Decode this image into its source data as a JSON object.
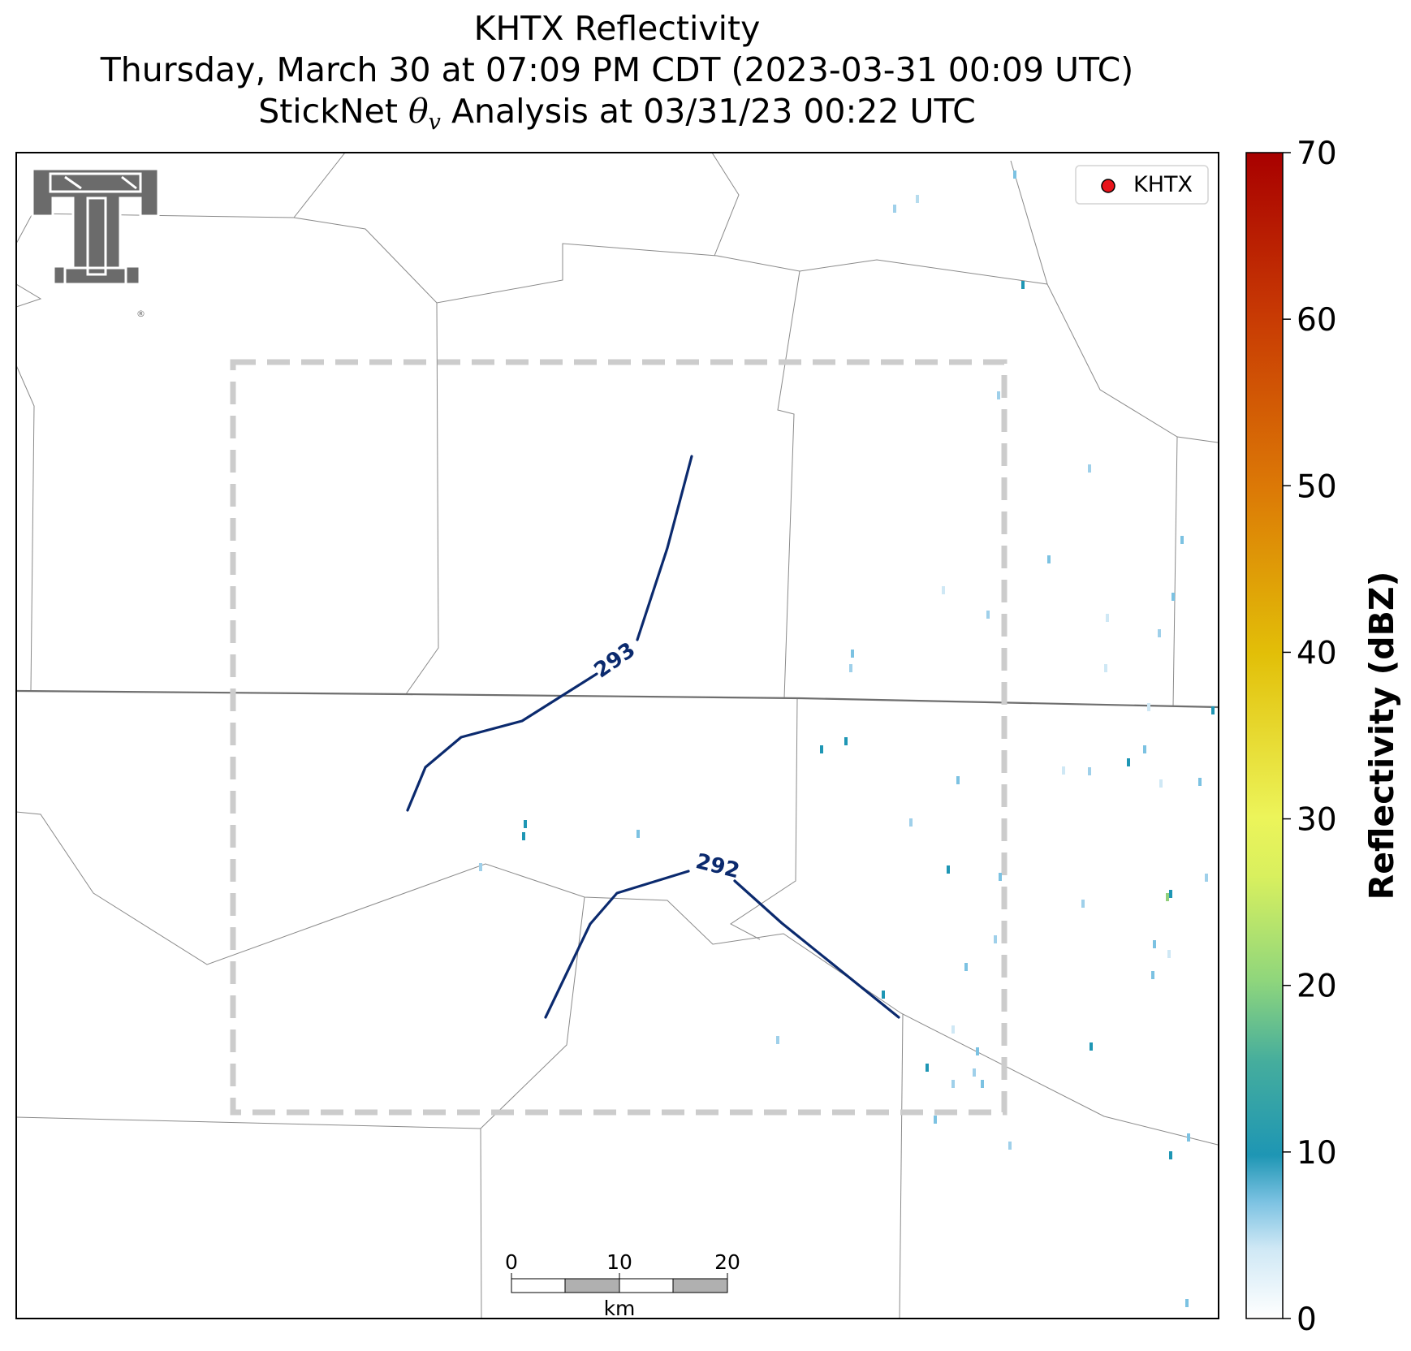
{
  "title": {
    "line1": "KHTX Reflectivity",
    "line2": "Thursday, March 30 at 07:09 PM CDT (2023-03-31 00:09 UTC)",
    "line3_prefix": "StickNet ",
    "line3_symbol": "θ",
    "line3_subscript": "v",
    "line3_suffix": " Analysis at 03/31/23 00:22 UTC"
  },
  "legend": {
    "label": "KHTX",
    "marker_color": "#e8141b"
  },
  "contours": [
    {
      "label": "293",
      "color": "#0b2a6e"
    },
    {
      "label": "292",
      "color": "#0b2a6e"
    }
  ],
  "scale_bar": {
    "ticks": [
      "0",
      "10",
      "20"
    ],
    "unit": "km"
  },
  "colorbar": {
    "label": "Reflectivity (dBZ)",
    "min": 0,
    "max": 70,
    "ticks": [
      "0",
      "10",
      "20",
      "30",
      "40",
      "50",
      "60",
      "70"
    ],
    "colors": [
      "#ffffff",
      "#9fd0ea",
      "#1e96b4",
      "#5cbf9a",
      "#a2dc78",
      "#e8f55a",
      "#e6c20a",
      "#e08a06",
      "#cc4a04",
      "#a80000"
    ]
  },
  "logo": {
    "name": "Texas Tech Double T",
    "registered_mark": "®"
  }
}
